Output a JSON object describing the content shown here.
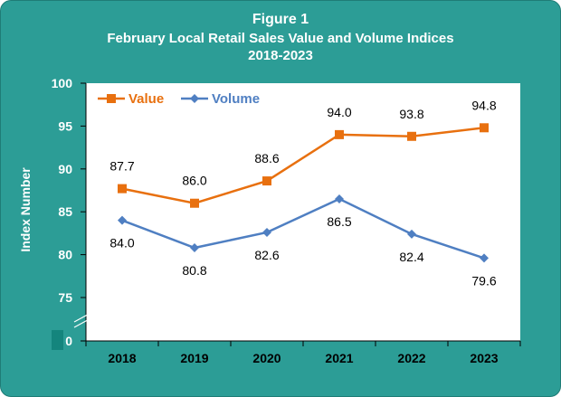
{
  "figure": {
    "title": "Figure 1",
    "subtitle": "February  Local Retail Sales Value and Volume Indices",
    "period": "2018-2023"
  },
  "colors": {
    "frame": "#2c9d96",
    "plot_bg": "#ffffff",
    "value_series": "#e8700f",
    "volume_series": "#4f7fc2",
    "axis_text": "#ffffff",
    "axis_break_marker": "#14857d"
  },
  "chart_data": {
    "type": "line",
    "categories": [
      "2018",
      "2019",
      "2020",
      "2021",
      "2022",
      "2023"
    ],
    "series": [
      {
        "name": "Value",
        "values": [
          87.7,
          86.0,
          88.6,
          94.0,
          93.8,
          94.8
        ],
        "labels": [
          "87.7",
          "86.0",
          "88.6",
          "94.0",
          "93.8",
          "94.8"
        ],
        "marker": "square"
      },
      {
        "name": "Volume",
        "values": [
          84.0,
          80.8,
          82.6,
          86.5,
          82.4,
          79.6
        ],
        "labels": [
          "84.0",
          "80.8",
          "82.6",
          "86.5",
          "82.4",
          "79.6"
        ],
        "marker": "diamond"
      }
    ],
    "ylabel": "Index Number",
    "xlabel": "",
    "y_ticks": [
      "100",
      "95",
      "90",
      "85",
      "80",
      "75",
      "0"
    ],
    "ylim": [
      70,
      100
    ],
    "y_axis_break": true,
    "grid": false,
    "legend": "top-left"
  }
}
